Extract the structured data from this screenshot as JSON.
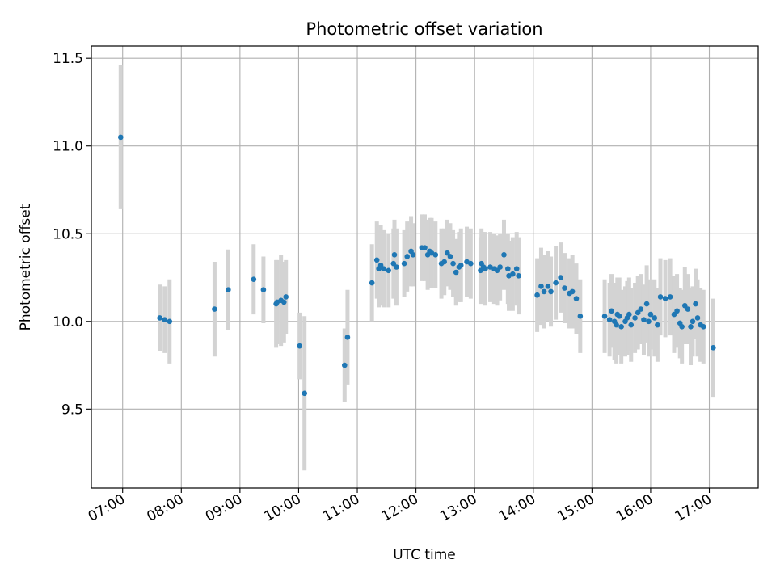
{
  "chart_data": {
    "type": "scatter",
    "title": "Photometric offset variation",
    "xlabel": "UTC time",
    "ylabel": "Photometric offset",
    "x_tick_labels": [
      "07:00",
      "08:00",
      "09:00",
      "10:00",
      "11:00",
      "12:00",
      "13:00",
      "14:00",
      "15:00",
      "16:00",
      "17:00"
    ],
    "y_tick_labels": [
      "9.5",
      "10.0",
      "10.5",
      "11.0",
      "11.5"
    ],
    "y_ticks": [
      9.5,
      10.0,
      10.5,
      11.0,
      11.5
    ],
    "xlim": [
      "06:28",
      "17:50"
    ],
    "ylim": [
      9.05,
      11.57
    ],
    "grid": true,
    "colors": {
      "point": "#1f77b4",
      "errorbar": "#d3d3d3",
      "grid": "#b0b0b0"
    },
    "series": [
      {
        "x": [
          "06:58",
          "07:38",
          "07:43",
          "07:48",
          "08:34",
          "08:48",
          "09:14",
          "09:24",
          "09:37",
          "09:38",
          "09:42",
          "09:45",
          "09:47",
          "10:01",
          "10:06",
          "10:47",
          "10:50",
          "11:15",
          "11:20",
          "11:22",
          "11:24",
          "11:27",
          "11:32",
          "11:37",
          "11:38",
          "11:40",
          "11:48",
          "11:51",
          "11:55",
          "11:57",
          "12:06",
          "12:09",
          "12:12",
          "12:14",
          "12:16",
          "12:20",
          "12:26",
          "12:29",
          "12:32",
          "12:35",
          "12:38",
          "12:41",
          "12:44",
          "12:46",
          "12:52",
          "12:56",
          "13:06",
          "13:07",
          "13:09",
          "13:11",
          "13:16",
          "13:20",
          "13:23",
          "13:26",
          "13:30",
          "13:34",
          "13:35",
          "13:39",
          "13:43",
          "13:45",
          "14:04",
          "14:08",
          "14:11",
          "14:15",
          "14:18",
          "14:23",
          "14:28",
          "14:32",
          "14:37",
          "14:40",
          "14:44",
          "14:48",
          "15:13",
          "15:18",
          "15:20",
          "15:23",
          "15:25",
          "15:26",
          "15:28",
          "15:30",
          "15:34",
          "15:36",
          "15:38",
          "15:40",
          "15:44",
          "15:47",
          "15:50",
          "15:53",
          "15:56",
          "15:58",
          "16:00",
          "16:04",
          "16:07",
          "16:10",
          "16:15",
          "16:20",
          "16:24",
          "16:27",
          "16:30",
          "16:32",
          "16:35",
          "16:38",
          "16:41",
          "16:43",
          "16:46",
          "16:48",
          "16:51",
          "16:54",
          "17:04"
        ],
        "y": [
          11.05,
          10.02,
          10.01,
          10.0,
          10.07,
          10.18,
          10.24,
          10.18,
          10.1,
          10.11,
          10.12,
          10.11,
          10.14,
          9.86,
          9.59,
          9.75,
          9.91,
          10.22,
          10.35,
          10.3,
          10.32,
          10.3,
          10.29,
          10.33,
          10.38,
          10.31,
          10.33,
          10.37,
          10.4,
          10.38,
          10.42,
          10.42,
          10.38,
          10.4,
          10.39,
          10.38,
          10.33,
          10.34,
          10.39,
          10.37,
          10.33,
          10.28,
          10.31,
          10.32,
          10.34,
          10.33,
          10.29,
          10.33,
          10.31,
          10.3,
          10.31,
          10.3,
          10.29,
          10.31,
          10.38,
          10.3,
          10.26,
          10.27,
          10.3,
          10.26,
          10.15,
          10.2,
          10.17,
          10.2,
          10.17,
          10.22,
          10.25,
          10.19,
          10.16,
          10.17,
          10.13,
          10.03,
          10.03,
          10.01,
          10.06,
          10.0,
          9.98,
          10.04,
          10.03,
          9.97,
          10.0,
          10.02,
          10.04,
          9.98,
          10.02,
          10.05,
          10.07,
          10.01,
          10.1,
          10.0,
          10.04,
          10.02,
          9.98,
          10.14,
          10.13,
          10.14,
          10.04,
          10.06,
          9.99,
          9.97,
          10.09,
          10.07,
          9.97,
          10.0,
          10.1,
          10.02,
          9.98,
          9.97,
          9.85
        ],
        "yerr": [
          0.41,
          0.19,
          0.19,
          0.24,
          0.27,
          0.23,
          0.2,
          0.19,
          0.25,
          0.24,
          0.26,
          0.23,
          0.21,
          0.19,
          0.44,
          0.21,
          0.27,
          0.22,
          0.22,
          0.22,
          0.23,
          0.22,
          0.21,
          0.2,
          0.2,
          0.22,
          0.19,
          0.2,
          0.2,
          0.18,
          0.19,
          0.19,
          0.2,
          0.19,
          0.2,
          0.19,
          0.2,
          0.19,
          0.19,
          0.19,
          0.19,
          0.19,
          0.2,
          0.21,
          0.2,
          0.2,
          0.19,
          0.2,
          0.2,
          0.21,
          0.2,
          0.2,
          0.2,
          0.19,
          0.2,
          0.2,
          0.2,
          0.21,
          0.21,
          0.22,
          0.21,
          0.22,
          0.21,
          0.2,
          0.2,
          0.21,
          0.2,
          0.2,
          0.2,
          0.21,
          0.2,
          0.21,
          0.21,
          0.21,
          0.21,
          0.22,
          0.22,
          0.21,
          0.22,
          0.21,
          0.2,
          0.21,
          0.21,
          0.21,
          0.2,
          0.21,
          0.2,
          0.2,
          0.22,
          0.2,
          0.2,
          0.22,
          0.21,
          0.22,
          0.22,
          0.22,
          0.22,
          0.21,
          0.2,
          0.21,
          0.22,
          0.2,
          0.22,
          0.2,
          0.2,
          0.22,
          0.21,
          0.21,
          0.28
        ]
      }
    ]
  }
}
